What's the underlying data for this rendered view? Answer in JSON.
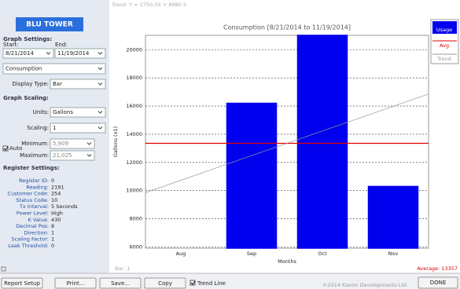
{
  "app": {
    "logo": "BLU TOWER",
    "trend_label": "Trend: Y = 1750.5X + 8980.5"
  },
  "sidebar": {
    "graph_settings": "Graph Settings:",
    "start_label": "Start:",
    "end_label": "End:",
    "start": "8/21/2014",
    "end": "11/19/2014",
    "measure": "Consumption",
    "display_type_label": "Display Type:",
    "display_type": "Bar",
    "graph_scaling": "Graph Scaling:",
    "units_label": "Units:",
    "units": "Gallons",
    "scaling_label": "Scaling:",
    "scaling": "1",
    "minimum_label": "Minimum:",
    "minimum": "5,909",
    "auto_label": "Auto",
    "maximum_label": "Maximum:",
    "maximum": "21,025",
    "register_settings": "Register Settings:",
    "registers": [
      [
        "Register ID:",
        "0"
      ],
      [
        "Reading:",
        "2191"
      ],
      [
        "Customer Code:",
        "254"
      ],
      [
        "Status Code:",
        "10"
      ],
      [
        "Tx Interval:",
        "5 Seconds"
      ],
      [
        "Power Level:",
        "High"
      ],
      [
        "K Value:",
        "430"
      ],
      [
        "Decimal Pos:",
        "8"
      ],
      [
        "Direction:",
        "1"
      ],
      [
        "Scaling Factor:",
        "1"
      ],
      [
        "Leak Threshold:",
        "0"
      ]
    ]
  },
  "chart_data": {
    "type": "bar",
    "title": "Consumption [8/21/2014 to 11/19/2014]",
    "x_label": "Months",
    "y_label": "Gallons (x1)",
    "categories": [
      "Aug",
      "Sep",
      "Oct",
      "Nov"
    ],
    "series": [
      {
        "name": "Usage",
        "color": "#0000ee",
        "values": [
          5909,
          16200,
          21025,
          10294
        ]
      }
    ],
    "average": {
      "name": "Avg",
      "color": "#e00000",
      "value": 13357,
      "label": "Average: 13357"
    },
    "trend": {
      "name": "Trend",
      "color": "#999999",
      "slope": 1750.5,
      "intercept": 8980.5
    },
    "bar_label": "Bar: 1",
    "ylim": [
      5909,
      21025
    ],
    "yticks": [
      6000,
      8000,
      10000,
      12000,
      14000,
      16000,
      18000,
      20000
    ],
    "grid": true,
    "legend": "right"
  },
  "footer": {
    "buttons": [
      "Report Setup",
      "Print...",
      "Save...",
      "Copy"
    ],
    "trend_line": "Trend Line",
    "copyright": "©2014 Kanon Developments Ltd",
    "done": "DONE"
  }
}
